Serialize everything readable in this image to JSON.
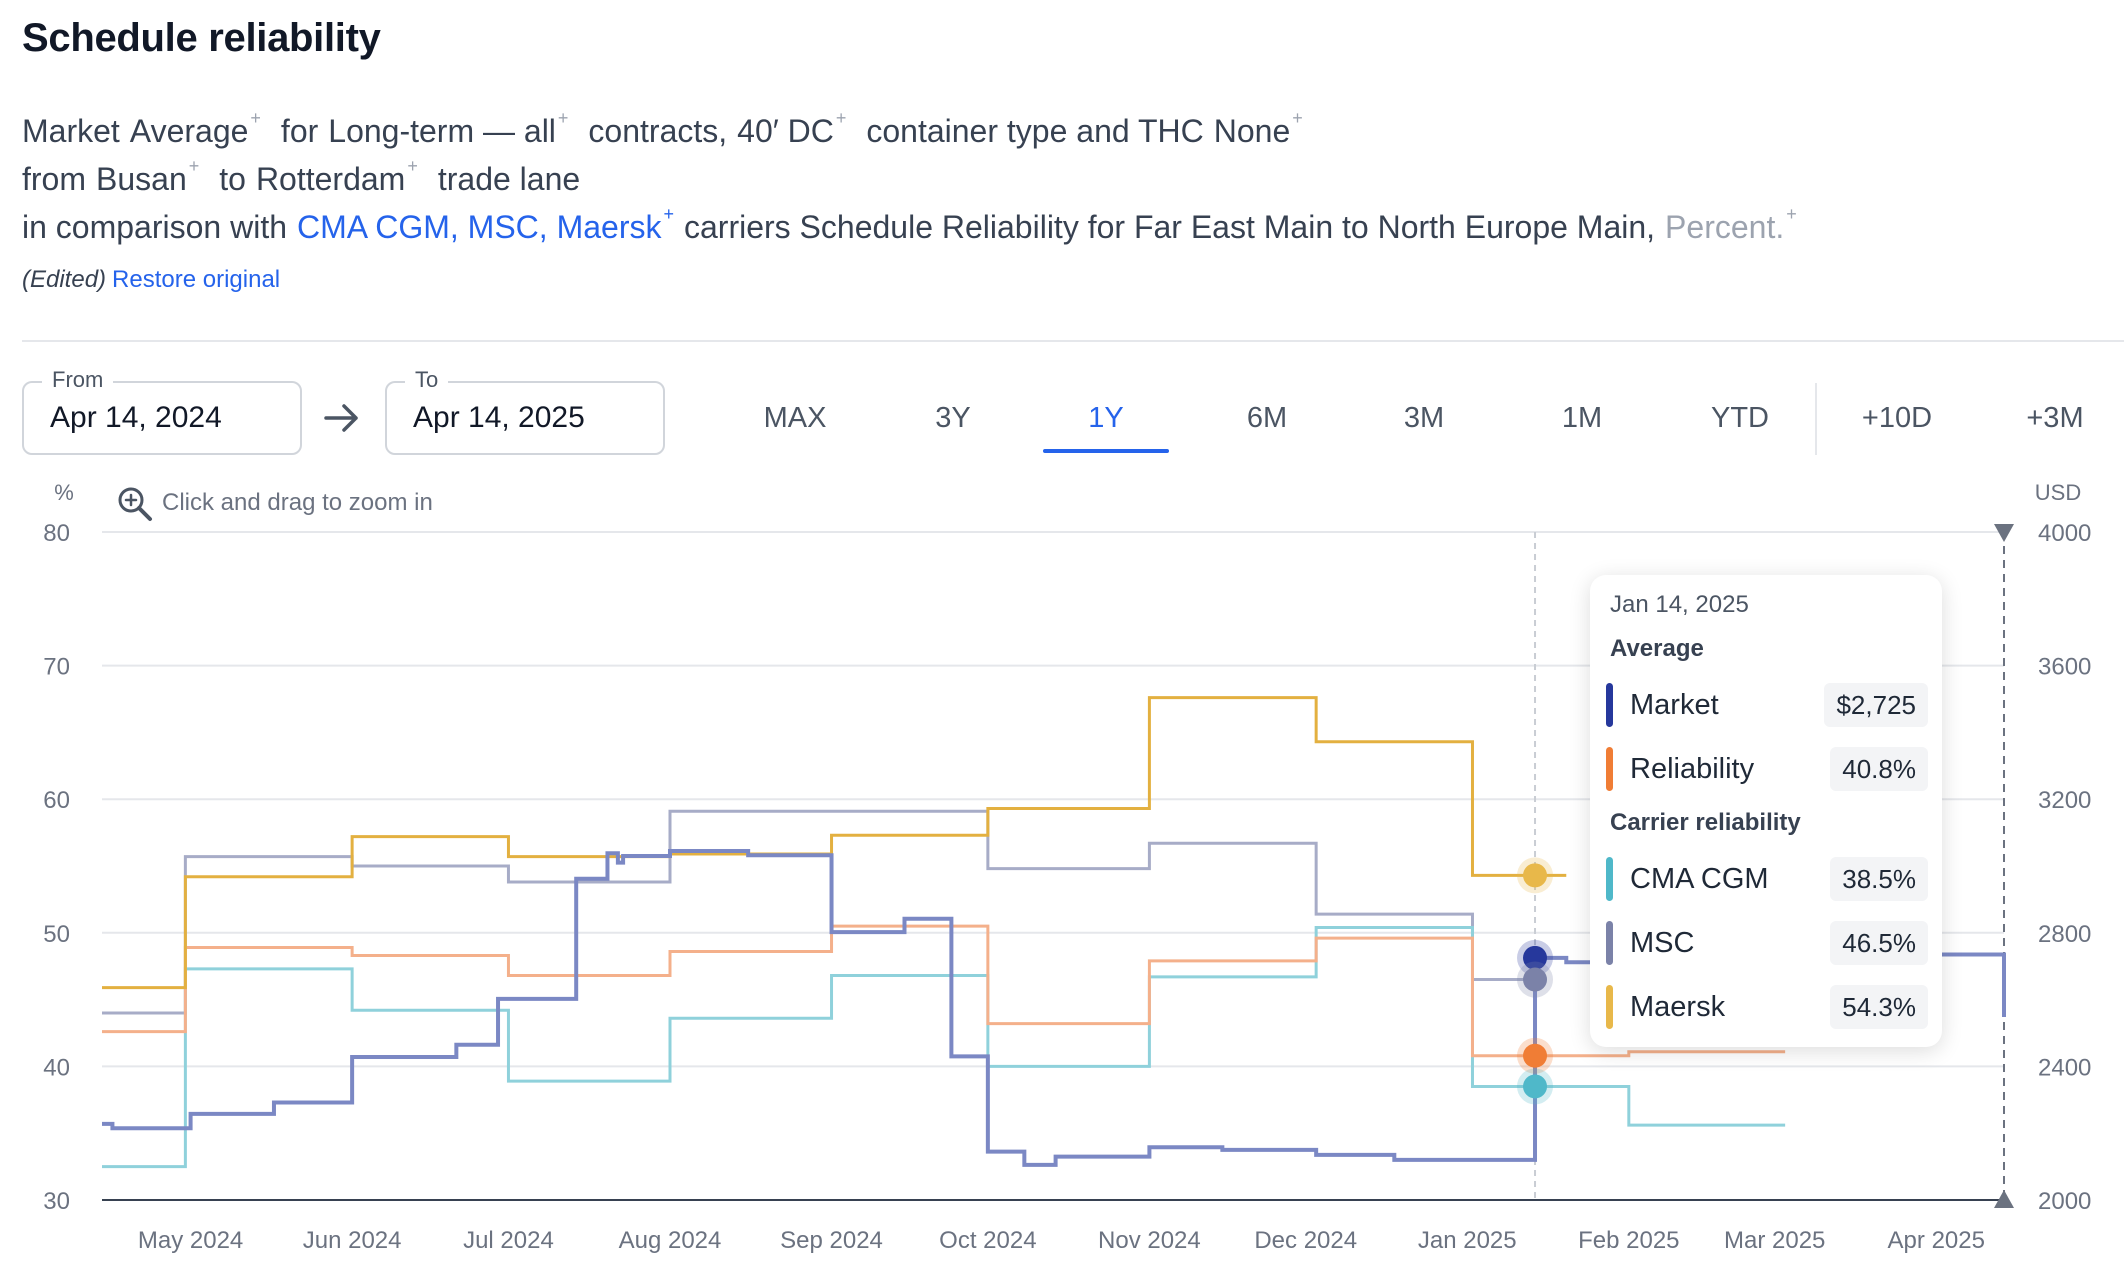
{
  "page": {
    "title": "Schedule reliability",
    "edited_label": "(Edited)",
    "restore_label": "Restore original"
  },
  "description": {
    "market": "Market",
    "average": "Average",
    "for_text": "for",
    "term": "Long-term — all",
    "contracts_text": "contracts,",
    "container": "40′ DC",
    "container_text": "container type and THC",
    "thc": "None",
    "from_text": "from",
    "origin": "Busan",
    "to_text": "to",
    "destination": "Rotterdam",
    "trade_lane_text": "trade lane",
    "comparison_text": "in comparison with",
    "carriers": "CMA CGM, MSC, Maersk",
    "reliability_text": "carriers Schedule Reliability for Far East Main to North Europe Main,",
    "unit": "Percent.",
    "plus": "+"
  },
  "date_range": {
    "from_label": "From",
    "from_value": "Apr 14, 2024",
    "to_label": "To",
    "to_value": "Apr 14, 2025"
  },
  "range_buttons": [
    "MAX",
    "3Y",
    "1Y",
    "6M",
    "3M",
    "1M",
    "YTD",
    "+10D",
    "+3M"
  ],
  "active_range": "1Y",
  "zoom_hint": "Click and drag to zoom in",
  "colors": {
    "market": "#7b88c4",
    "market_dot": "#26389c",
    "reliability": "#f4b08b",
    "reliability_dot": "#f07d35",
    "cma_cgm": "#8fd1db",
    "cma_cgm_dot": "#4fb8c9",
    "msc": "#a7acc7",
    "msc_dot": "#7b82a8",
    "maersk": "#e3b040",
    "maersk_dot": "#e8b84a"
  },
  "tooltip": {
    "date": "Jan 14, 2025",
    "average_heading": "Average",
    "carrier_heading": "Carrier reliability",
    "rows": [
      {
        "name": "Market",
        "value": "$2,725",
        "color": "#26389c"
      },
      {
        "name": "Reliability",
        "value": "40.8%",
        "color": "#f07d35"
      },
      {
        "name": "CMA CGM",
        "value": "38.5%",
        "color": "#4fb8c9"
      },
      {
        "name": "MSC",
        "value": "46.5%",
        "color": "#7b82a8"
      },
      {
        "name": "Maersk",
        "value": "54.3%",
        "color": "#e8b84a"
      }
    ]
  },
  "chart_data": {
    "type": "line",
    "step": true,
    "x_ticks": [
      "May 2024",
      "Jun 2024",
      "Jul 2024",
      "Aug 2024",
      "Sep 2024",
      "Oct 2024",
      "Nov 2024",
      "Dec 2024",
      "Jan 2025",
      "Feb 2025",
      "Mar 2025",
      "Apr 2025"
    ],
    "x_range": [
      "2024-04-14",
      "2025-04-14"
    ],
    "y_left": {
      "unit": "%",
      "range": [
        30,
        80
      ],
      "ticks": [
        30,
        40,
        50,
        60,
        70,
        80
      ]
    },
    "y_right": {
      "unit": "USD",
      "range": [
        2000,
        4000
      ],
      "ticks": [
        2000,
        2400,
        2800,
        3200,
        3600,
        4000
      ]
    },
    "grid": true,
    "crosshair_date": "2025-01-14",
    "series": [
      {
        "name": "Market",
        "axis": "right",
        "color": "#7b88c4",
        "width": 4,
        "points": [
          [
            "2024-04-14",
            2228
          ],
          [
            "2024-04-16",
            2215
          ],
          [
            "2024-05-01",
            2258
          ],
          [
            "2024-05-17",
            2292
          ],
          [
            "2024-06-01",
            2428
          ],
          [
            "2024-06-21",
            2465
          ],
          [
            "2024-06-29",
            2602
          ],
          [
            "2024-07-14",
            2962
          ],
          [
            "2024-07-20",
            3038
          ],
          [
            "2024-07-22",
            3010
          ],
          [
            "2024-07-23",
            3030
          ],
          [
            "2024-08-01",
            3045
          ],
          [
            "2024-08-16",
            3032
          ],
          [
            "2024-09-01",
            2802
          ],
          [
            "2024-09-15",
            2842
          ],
          [
            "2024-09-24",
            2430
          ],
          [
            "2024-10-01",
            2145
          ],
          [
            "2024-10-08",
            2105
          ],
          [
            "2024-10-14",
            2130
          ],
          [
            "2024-11-01",
            2158
          ],
          [
            "2024-11-15",
            2150
          ],
          [
            "2024-12-03",
            2135
          ],
          [
            "2024-12-18",
            2120
          ],
          [
            "2025-01-01",
            2120
          ],
          [
            "2025-01-14",
            2725
          ],
          [
            "2025-01-20",
            2712
          ],
          [
            "2025-01-25",
            2718
          ],
          [
            "2025-02-01",
            2735
          ],
          [
            "2025-04-14",
            2548
          ]
        ]
      },
      {
        "name": "Reliability",
        "axis": "left",
        "color": "#f4b08b",
        "width": 3,
        "points": [
          [
            "2024-04-14",
            42.6
          ],
          [
            "2024-04-30",
            48.9
          ],
          [
            "2024-06-01",
            48.3
          ],
          [
            "2024-07-01",
            46.8
          ],
          [
            "2024-08-01",
            48.6
          ],
          [
            "2024-09-01",
            50.5
          ],
          [
            "2024-10-01",
            43.2
          ],
          [
            "2024-11-01",
            47.9
          ],
          [
            "2024-12-03",
            49.6
          ],
          [
            "2025-01-02",
            40.8
          ],
          [
            "2025-02-01",
            41.1
          ]
        ],
        "end": "2025-03-03"
      },
      {
        "name": "CMA CGM",
        "axis": "left",
        "color": "#8fd1db",
        "width": 3,
        "points": [
          [
            "2024-04-14",
            32.5
          ],
          [
            "2024-04-30",
            47.3
          ],
          [
            "2024-06-01",
            44.2
          ],
          [
            "2024-07-01",
            38.9
          ],
          [
            "2024-08-01",
            43.6
          ],
          [
            "2024-09-01",
            46.8
          ],
          [
            "2024-10-01",
            40.0
          ],
          [
            "2024-11-01",
            46.7
          ],
          [
            "2024-12-03",
            50.4
          ],
          [
            "2025-01-02",
            38.5
          ],
          [
            "2025-02-01",
            35.6
          ]
        ],
        "end": "2025-03-03"
      },
      {
        "name": "MSC",
        "axis": "left",
        "color": "#a7acc7",
        "width": 3,
        "points": [
          [
            "2024-04-14",
            44.0
          ],
          [
            "2024-04-30",
            55.7
          ],
          [
            "2024-06-01",
            55.0
          ],
          [
            "2024-07-01",
            53.8
          ],
          [
            "2024-08-01",
            59.1
          ],
          [
            "2024-10-01",
            54.8
          ],
          [
            "2024-11-01",
            56.7
          ],
          [
            "2024-12-03",
            51.4
          ],
          [
            "2025-01-02",
            46.5
          ]
        ],
        "end": "2025-01-14"
      },
      {
        "name": "Maersk",
        "axis": "left",
        "color": "#e3b040",
        "width": 3,
        "points": [
          [
            "2024-04-14",
            45.9
          ],
          [
            "2024-04-30",
            54.2
          ],
          [
            "2024-06-01",
            57.2
          ],
          [
            "2024-07-01",
            55.7
          ],
          [
            "2024-08-01",
            55.9
          ],
          [
            "2024-09-01",
            57.3
          ],
          [
            "2024-10-01",
            59.3
          ],
          [
            "2024-11-01",
            67.6
          ],
          [
            "2024-12-03",
            64.3
          ],
          [
            "2025-01-02",
            54.3
          ]
        ],
        "end": "2025-01-20"
      }
    ]
  }
}
